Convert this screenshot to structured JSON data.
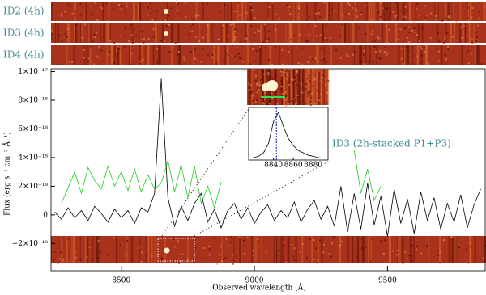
{
  "chart_data": [
    {
      "type": "line",
      "x_label": "Observed wavelength [Å]",
      "y_label": "Flux (erg s⁻¹ cm⁻² Å⁻¹)",
      "strip_labels": [
        "ID2 (4h)",
        "ID3 (4h)",
        "ID4 (4h)"
      ],
      "annotation": "ID3 (2h-stacked P1+P3)",
      "xlim": [
        8236,
        9870
      ],
      "xticks": [
        8500,
        9000,
        9500
      ],
      "ylim": [
        -3.9e-18,
        1.02e-17
      ],
      "yticks": [
        {
          "value": 1e-17,
          "label": "1×10⁻¹⁷"
        },
        {
          "value": 8e-18,
          "label": "8×10⁻¹⁸"
        },
        {
          "value": 6e-18,
          "label": "6×10⁻¹⁸"
        },
        {
          "value": 4e-18,
          "label": "4×10⁻¹⁸"
        },
        {
          "value": 2e-18,
          "label": "2×10⁻¹⁸"
        },
        0,
        {
          "value": -2e-18,
          "label": "−2×10⁻¹⁸"
        }
      ],
      "x": [
        8250,
        8275,
        8300,
        8325,
        8350,
        8375,
        8400,
        8425,
        8450,
        8475,
        8500,
        8525,
        8550,
        8575,
        8600,
        8625,
        8650,
        8675,
        8700,
        8725,
        8750,
        8775,
        8800,
        8825,
        8850,
        8875,
        8900,
        8925,
        8950,
        8975,
        9000,
        9025,
        9050,
        9075,
        9100,
        9125,
        9150,
        9175,
        9200,
        9225,
        9250,
        9275,
        9300,
        9325,
        9350,
        9375,
        9400,
        9425,
        9450,
        9475,
        9500,
        9525,
        9550,
        9575,
        9600,
        9625,
        9650,
        9675,
        9700,
        9725,
        9750,
        9775,
        9800,
        9825,
        9850
      ],
      "series": [
        {
          "color": "#22cc22",
          "values": [
            null,
            8e-19,
            1.9e-18,
            3e-18,
            1.5e-18,
            3.3e-18,
            2.4e-18,
            1.8e-18,
            3.4e-18,
            2e-18,
            3e-18,
            1.7e-18,
            3.2e-18,
            1.6e-18,
            2.8e-18,
            1.8e-18,
            2.2e-18,
            3.8e-18,
            1.6e-18,
            3.5e-18,
            1.2e-18,
            3.4e-18,
            8e-19,
            2e-18,
            5e-19,
            2.3e-18,
            null,
            null,
            null,
            null,
            null,
            null,
            null,
            null,
            null,
            null,
            null,
            null,
            null,
            null,
            null,
            null,
            null,
            null,
            null,
            4.5e-18,
            1.5e-18,
            3.2e-18,
            1e-18,
            2e-18,
            null,
            null,
            null,
            null,
            null,
            null,
            null,
            null,
            null,
            null,
            null,
            null,
            null,
            null,
            null
          ]
        },
        {
          "color": "#000000",
          "values": [
            2e-19,
            -3e-19,
            5e-19,
            -2e-19,
            3e-19,
            -4e-19,
            6e-19,
            1e-19,
            -5e-19,
            4e-19,
            -2e-19,
            3e-19,
            -6e-19,
            5e-19,
            2e-19,
            1.5e-18,
            9.5e-18,
            1.2e-18,
            -8e-19,
            6e-19,
            -4e-19,
            8e-19,
            1.5e-18,
            -5e-19,
            4e-19,
            -9e-19,
            3e-19,
            8e-19,
            -3e-19,
            5e-19,
            -6e-19,
            2e-19,
            7e-19,
            -4e-19,
            3e-19,
            -2e-19,
            9e-19,
            -5e-19,
            4e-19,
            1e-18,
            -3e-19,
            6e-19,
            -8e-19,
            2e-18,
            -1.2e-18,
            1.5e-18,
            -1e-18,
            2.2e-18,
            -7e-19,
            1.3e-18,
            -1.5e-18,
            1.8e-18,
            -6e-19,
            1.1e-18,
            -1.3e-18,
            1.6e-18,
            -4e-19,
            1.2e-18,
            -1e-18,
            8e-19,
            -5e-19,
            1.4e-18,
            -9e-19,
            7e-19,
            1.8e-18
          ]
        }
      ]
    },
    {
      "type": "inset",
      "xlim": [
        8815,
        8895
      ],
      "xticks": [
        8840,
        8860,
        8880
      ],
      "ylim": [
        0,
        1.1
      ],
      "line_x": 8843,
      "x": [
        8820,
        8825,
        8830,
        8835,
        8840,
        8845,
        8850,
        8855,
        8860,
        8865,
        8870,
        8875,
        8880,
        8885,
        8890
      ],
      "values": [
        0.05,
        0.08,
        0.15,
        0.35,
        0.8,
        1.0,
        0.7,
        0.45,
        0.3,
        0.2,
        0.15,
        0.1,
        0.08,
        0.05,
        0.04
      ]
    }
  ]
}
